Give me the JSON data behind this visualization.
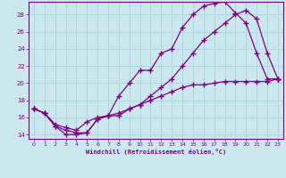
{
  "xlabel": "Windchill (Refroidissement éolien,°C)",
  "bg_color": "#cce8ef",
  "line_color": "#800080",
  "grid_color": "#b0d8e0",
  "xlim": [
    -0.5,
    23.5
  ],
  "ylim": [
    13.5,
    29.5
  ],
  "yticks": [
    14,
    16,
    18,
    20,
    22,
    24,
    26,
    28
  ],
  "xticks": [
    0,
    1,
    2,
    3,
    4,
    5,
    6,
    7,
    8,
    9,
    10,
    11,
    12,
    13,
    14,
    15,
    16,
    17,
    18,
    19,
    20,
    21,
    22,
    23
  ],
  "line1_x": [
    0,
    1,
    2,
    3,
    4,
    5,
    6,
    7,
    8,
    9,
    10,
    11,
    12,
    13,
    14,
    15,
    16,
    17,
    18,
    19,
    20,
    21,
    22,
    23
  ],
  "line1_y": [
    17.0,
    16.5,
    15.0,
    14.0,
    14.0,
    14.2,
    15.8,
    16.2,
    18.5,
    20.0,
    21.5,
    21.5,
    23.5,
    24.0,
    26.5,
    28.0,
    29.0,
    29.3,
    29.5,
    28.2,
    27.0,
    23.5,
    20.5,
    20.5
  ],
  "line2_x": [
    0,
    1,
    2,
    3,
    4,
    5,
    6,
    7,
    8,
    9,
    10,
    11,
    12,
    13,
    14,
    15,
    16,
    17,
    18,
    19,
    20,
    21,
    22,
    23
  ],
  "line2_y": [
    17.0,
    16.5,
    15.0,
    14.5,
    14.2,
    14.2,
    15.8,
    16.2,
    16.2,
    17.0,
    17.5,
    18.5,
    19.5,
    20.5,
    22.0,
    23.5,
    25.0,
    26.0,
    27.0,
    28.0,
    28.5,
    27.5,
    23.5,
    20.5
  ],
  "line3_x": [
    0,
    1,
    2,
    3,
    4,
    5,
    6,
    7,
    8,
    9,
    10,
    11,
    12,
    13,
    14,
    15,
    16,
    17,
    18,
    19,
    20,
    21,
    22,
    23
  ],
  "line3_y": [
    17.0,
    16.5,
    15.2,
    14.8,
    14.5,
    15.5,
    16.0,
    16.2,
    16.5,
    17.0,
    17.5,
    18.0,
    18.5,
    19.0,
    19.5,
    19.8,
    19.8,
    20.0,
    20.2,
    20.2,
    20.2,
    20.2,
    20.2,
    20.5
  ]
}
